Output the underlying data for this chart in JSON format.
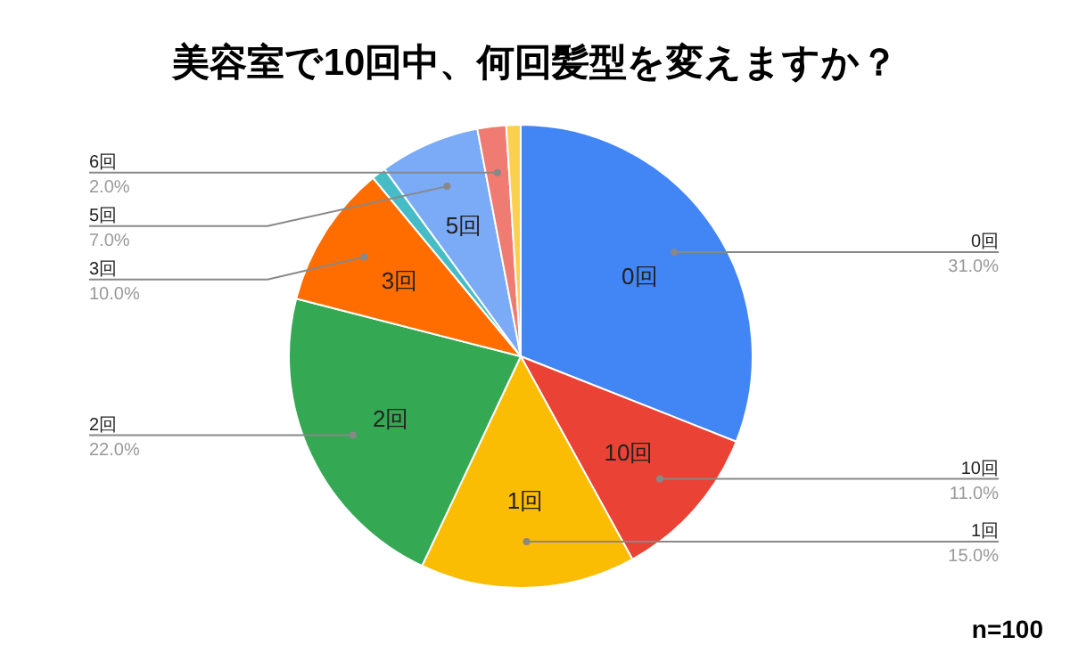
{
  "chart_data": {
    "type": "pie",
    "title": "美容室で10回中、何回髪型を変えますか？",
    "categories": [
      "0回",
      "10回",
      "1回",
      "2回",
      "3回",
      null,
      "5回",
      "6回",
      null
    ],
    "values": [
      31,
      11,
      15,
      22,
      10,
      1,
      7,
      2,
      1
    ],
    "value_labels": [
      "31.0%",
      "11.0%",
      "15.0%",
      "22.0%",
      "10.0%",
      null,
      "7.0%",
      "2.0%",
      null
    ],
    "colors": [
      "#4285f4",
      "#ea4335",
      "#fbbc04",
      "#34a853",
      "#ff6d01",
      "#46bdc6",
      "#7baaf7",
      "#f07b72",
      "#fcd04f"
    ],
    "annotations": [
      "n=100"
    ]
  }
}
